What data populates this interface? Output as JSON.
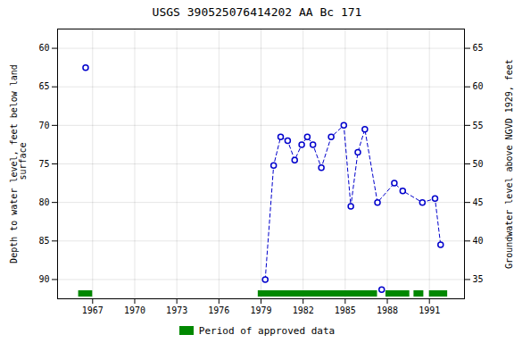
{
  "chart_data": {
    "type": "line",
    "title": "USGS 390525076414202 AA Bc 171",
    "ylabel": "Depth to water level, feet below land\n surface",
    "y2label": "Groundwater level above NGVD 1929, feet",
    "series": [
      {
        "type": "line",
        "x": [
          1979.3,
          1979.9,
          1980.4,
          1980.9,
          1981.4,
          1981.9,
          1982.3,
          1982.7,
          1983.3,
          1984.0,
          1984.9,
          1985.4,
          1985.9,
          1986.4,
          1987.3,
          1988.5,
          1989.1,
          1990.5,
          1991.4,
          1991.8
        ],
        "values": [
          90.0,
          75.2,
          71.5,
          72.0,
          74.5,
          72.5,
          71.5,
          72.5,
          75.5,
          71.5,
          70.0,
          80.5,
          73.5,
          70.5,
          80.0,
          77.5,
          78.5,
          80.0,
          79.5,
          85.5
        ],
        "color": "#0000cc",
        "line_style": "dashed",
        "marker": "o"
      },
      {
        "type": "scatter",
        "x": [
          1966.5,
          1987.6
        ],
        "values": [
          62.5,
          91.3
        ],
        "color": "#0000cc",
        "marker": "o"
      }
    ],
    "periods": [
      [
        1966.0,
        1967.0
      ],
      [
        1978.8,
        1987.3
      ],
      [
        1987.9,
        1989.6
      ],
      [
        1989.9,
        1990.6
      ],
      [
        1991.0,
        1992.3
      ]
    ],
    "period_label": "Period of approved data",
    "period_color": "#008800",
    "xlim": [
      1964.5,
      1993.5
    ],
    "xticks": [
      1967,
      1970,
      1973,
      1976,
      1979,
      1982,
      1985,
      1988,
      1991
    ],
    "ylim": [
      92.5,
      57.5
    ],
    "yticks": [
      60,
      65,
      70,
      75,
      80,
      85,
      90
    ],
    "y2lim": [
      32.5,
      67.5
    ],
    "y2ticks": [
      35,
      40,
      45,
      50,
      55,
      60,
      65
    ],
    "grid": true,
    "legend": "bottom"
  }
}
